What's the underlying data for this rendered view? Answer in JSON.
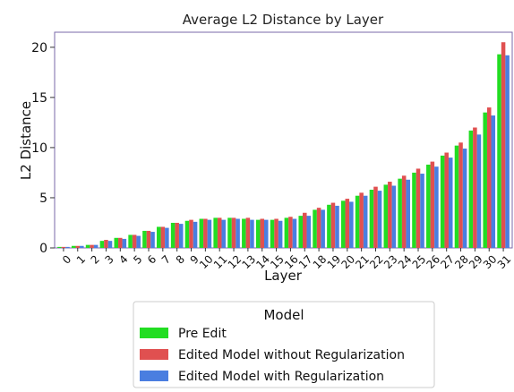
{
  "chart_data": {
    "type": "bar",
    "title": "Average L2 Distance by Layer",
    "xlabel": "Layer",
    "ylabel": "L2 Distance",
    "ylim": [
      0,
      21.5
    ],
    "yticks": [
      0,
      5,
      10,
      15,
      20
    ],
    "categories": [
      "0",
      "1",
      "2",
      "3",
      "4",
      "5",
      "6",
      "7",
      "8",
      "9",
      "10",
      "11",
      "12",
      "13",
      "14",
      "15",
      "16",
      "17",
      "18",
      "19",
      "20",
      "21",
      "22",
      "23",
      "24",
      "25",
      "26",
      "27",
      "28",
      "29",
      "30",
      "31"
    ],
    "series": [
      {
        "name": "Pre Edit",
        "color": "#22dd22",
        "values": [
          0.1,
          0.2,
          0.3,
          0.7,
          1.0,
          1.3,
          1.7,
          2.1,
          2.5,
          2.7,
          2.9,
          3.0,
          3.0,
          2.9,
          2.8,
          2.8,
          3.0,
          3.2,
          3.8,
          4.3,
          4.7,
          5.2,
          5.8,
          6.3,
          6.9,
          7.5,
          8.3,
          9.2,
          10.2,
          11.7,
          13.5,
          19.3
        ]
      },
      {
        "name": "Edited Model without Regularization",
        "color": "#e05050",
        "values": [
          0.1,
          0.2,
          0.3,
          0.8,
          1.0,
          1.3,
          1.7,
          2.1,
          2.5,
          2.8,
          2.9,
          3.0,
          3.0,
          3.0,
          2.9,
          2.9,
          3.1,
          3.5,
          4.0,
          4.5,
          4.9,
          5.5,
          6.1,
          6.6,
          7.2,
          7.9,
          8.6,
          9.5,
          10.5,
          12.0,
          14.0,
          20.5
        ]
      },
      {
        "name": "Edited Model with Regularization",
        "color": "#4a7ee0",
        "values": [
          0.1,
          0.2,
          0.3,
          0.7,
          0.9,
          1.2,
          1.6,
          2.0,
          2.4,
          2.6,
          2.8,
          2.8,
          2.9,
          2.8,
          2.8,
          2.7,
          2.9,
          3.2,
          3.8,
          4.2,
          4.6,
          5.2,
          5.7,
          6.2,
          6.8,
          7.4,
          8.1,
          9.0,
          9.9,
          11.3,
          13.2,
          19.2
        ]
      }
    ],
    "legend": {
      "title": "Model",
      "placement": "below-center"
    },
    "grid": false
  }
}
